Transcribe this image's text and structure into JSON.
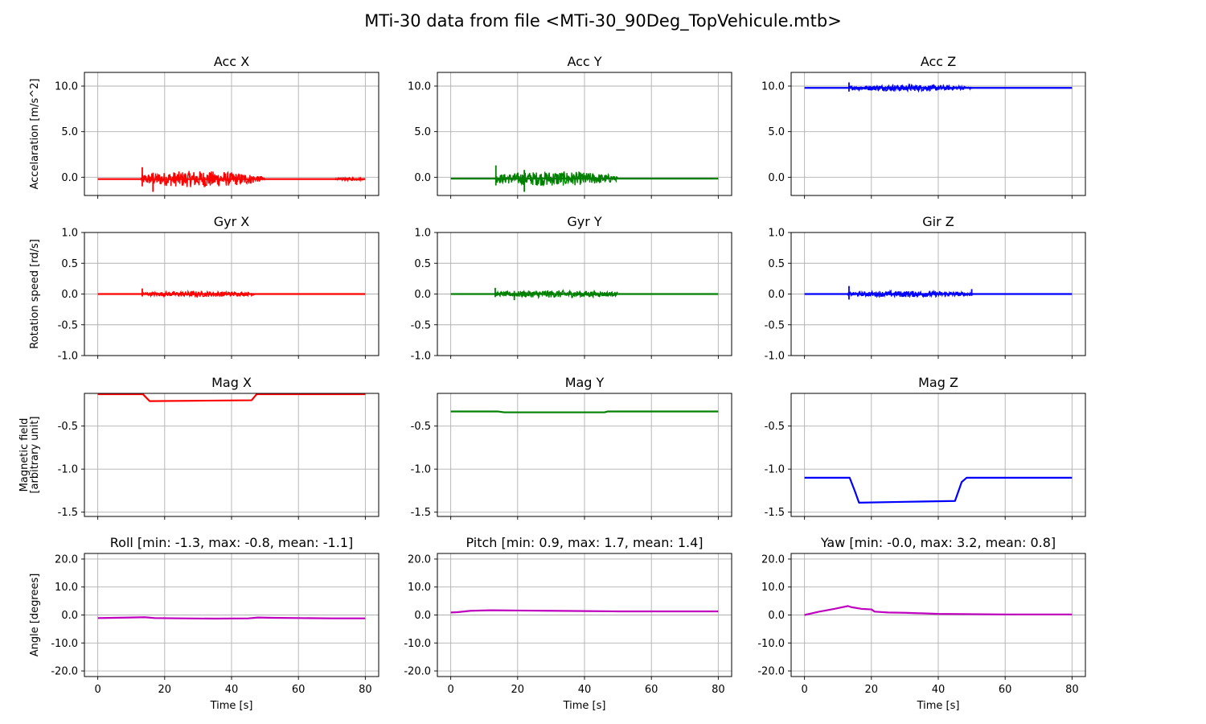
{
  "suptitle": "MTi-30 data from file <MTi-30_90Deg_TopVehicule.mtb>",
  "row_labels": [
    [
      "Accelaration [m/s^2]"
    ],
    [
      "Rotation speed [rd/s]"
    ],
    [
      "Magnetic field",
      "[arbitrary unit]"
    ],
    [
      "Angle [degrees]"
    ]
  ],
  "xlabel": "Time [s]",
  "xlim": [
    -4,
    84
  ],
  "xticks": [
    0,
    20,
    40,
    60,
    80
  ],
  "chart_data": [
    {
      "type": "line",
      "title": "Acc X",
      "color": "#ff0000",
      "ylim": [
        -2.0,
        11.5
      ],
      "yticks": [
        0.0,
        5.0,
        10.0
      ],
      "ytick_labels": [
        "0.0",
        "5.0",
        "10.0"
      ],
      "grid": true,
      "series": [
        {
          "x": [
            0,
            13,
            14,
            45,
            47,
            49,
            80
          ],
          "y": [
            -0.2,
            -0.2,
            -0.2,
            -0.2,
            -0.2,
            -0.2,
            -0.2
          ],
          "noise": [
            {
              "x0": 13,
              "x1": 47,
              "amp": 0.9
            },
            {
              "x0": 47,
              "x1": 50,
              "amp": 0.35
            },
            {
              "x0": 71,
              "x1": 80,
              "amp": 0.15
            }
          ],
          "spikes": [
            {
              "x": 13.3,
              "lo": -1.0,
              "hi": 1.1
            },
            {
              "x": 16.5,
              "lo": -1.6,
              "hi": 0.5
            }
          ]
        }
      ]
    },
    {
      "type": "line",
      "title": "Acc Y",
      "color": "#008000",
      "ylim": [
        -2.0,
        11.5
      ],
      "yticks": [
        0.0,
        5.0,
        10.0
      ],
      "ytick_labels": [
        "0.0",
        "5.0",
        "10.0"
      ],
      "grid": true,
      "series": [
        {
          "x": [
            0,
            13,
            14,
            48,
            50,
            80
          ],
          "y": [
            -0.15,
            -0.15,
            -0.15,
            -0.15,
            -0.15,
            -0.15
          ],
          "noise": [
            {
              "x0": 13.5,
              "x1": 48,
              "amp": 0.8
            },
            {
              "x0": 48,
              "x1": 50,
              "amp": 0.3
            }
          ],
          "spikes": [
            {
              "x": 13.5,
              "lo": -0.9,
              "hi": 1.3
            },
            {
              "x": 22,
              "lo": -1.6,
              "hi": 0.8
            }
          ]
        }
      ]
    },
    {
      "type": "line",
      "title": "Acc Z",
      "color": "#0000ff",
      "ylim": [
        -2.0,
        11.5
      ],
      "yticks": [
        0.0,
        5.0,
        10.0
      ],
      "ytick_labels": [
        "0.0",
        "5.0",
        "10.0"
      ],
      "grid": true,
      "series": [
        {
          "x": [
            0,
            13,
            48,
            50,
            80
          ],
          "y": [
            9.8,
            9.8,
            9.8,
            9.8,
            9.8
          ],
          "noise": [
            {
              "x0": 13.2,
              "x1": 48,
              "amp": 0.35
            },
            {
              "x0": 48,
              "x1": 50,
              "amp": 0.15
            }
          ],
          "spikes": [
            {
              "x": 13.3,
              "lo": 9.4,
              "hi": 10.4
            }
          ]
        }
      ]
    },
    {
      "type": "line",
      "title": "Gyr X",
      "color": "#ff0000",
      "ylim": [
        -1.0,
        1.0
      ],
      "yticks": [
        -1.0,
        -0.5,
        0.0,
        0.5,
        1.0
      ],
      "ytick_labels": [
        "-1.0",
        "-0.5",
        "0.0",
        "0.5",
        "1.0"
      ],
      "grid": true,
      "series": [
        {
          "x": [
            0,
            13,
            48,
            80
          ],
          "y": [
            0.0,
            0.0,
            0.0,
            0.0
          ],
          "noise": [
            {
              "x0": 13.3,
              "x1": 47,
              "amp": 0.045
            }
          ],
          "spikes": [
            {
              "x": 13.3,
              "lo": -0.04,
              "hi": 0.09
            }
          ]
        }
      ]
    },
    {
      "type": "line",
      "title": "Gyr Y",
      "color": "#008000",
      "ylim": [
        -1.0,
        1.0
      ],
      "yticks": [
        -1.0,
        -0.5,
        0.0,
        0.5,
        1.0
      ],
      "ytick_labels": [
        "-1.0",
        "-0.5",
        "0.0",
        "0.5",
        "1.0"
      ],
      "grid": true,
      "series": [
        {
          "x": [
            0,
            13,
            50,
            80
          ],
          "y": [
            0.0,
            0.0,
            0.0,
            0.0
          ],
          "noise": [
            {
              "x0": 13.3,
              "x1": 50,
              "amp": 0.06
            }
          ],
          "spikes": [
            {
              "x": 13.3,
              "lo": -0.05,
              "hi": 0.1
            },
            {
              "x": 19,
              "lo": -0.1,
              "hi": 0.05
            }
          ]
        }
      ]
    },
    {
      "type": "line",
      "title": "Gir Z",
      "color": "#0000ff",
      "ylim": [
        -1.0,
        1.0
      ],
      "yticks": [
        -1.0,
        -0.5,
        0.0,
        0.5,
        1.0
      ],
      "ytick_labels": [
        "-1.0",
        "-0.5",
        "0.0",
        "0.5",
        "1.0"
      ],
      "grid": true,
      "series": [
        {
          "x": [
            0,
            13,
            49,
            80
          ],
          "y": [
            0.0,
            0.0,
            0.0,
            0.0
          ],
          "noise": [
            {
              "x0": 13,
              "x1": 50,
              "amp": 0.05
            }
          ],
          "spikes": [
            {
              "x": 13.3,
              "lo": -0.09,
              "hi": 0.13
            },
            {
              "x": 50,
              "lo": -0.03,
              "hi": 0.08
            }
          ]
        }
      ]
    },
    {
      "type": "line",
      "title": "Mag X",
      "color": "#ff0000",
      "ylim": [
        -1.55,
        -0.12
      ],
      "yticks": [
        -1.5,
        -1.0,
        -0.5
      ],
      "ytick_labels": [
        "-1.5",
        "-1.0",
        "-0.5"
      ],
      "grid": true,
      "series": [
        {
          "x": [
            0,
            13.5,
            15.5,
            46,
            47.5,
            80
          ],
          "y": [
            -0.13,
            -0.13,
            -0.21,
            -0.2,
            -0.13,
            -0.13
          ],
          "noise": [],
          "spikes": []
        }
      ]
    },
    {
      "type": "line",
      "title": "Mag Y",
      "color": "#008000",
      "ylim": [
        -1.55,
        -0.12
      ],
      "yticks": [
        -1.5,
        -1.0,
        -0.5
      ],
      "ytick_labels": [
        "-1.5",
        "-1.0",
        "-0.5"
      ],
      "grid": true,
      "series": [
        {
          "x": [
            0,
            14,
            16,
            46,
            47,
            80
          ],
          "y": [
            -0.33,
            -0.33,
            -0.34,
            -0.34,
            -0.33,
            -0.33
          ],
          "noise": [],
          "spikes": []
        }
      ]
    },
    {
      "type": "line",
      "title": "Mag Z",
      "color": "#0000ff",
      "ylim": [
        -1.55,
        -0.12
      ],
      "yticks": [
        -1.5,
        -1.0,
        -0.5
      ],
      "ytick_labels": [
        "-1.5",
        "-1.0",
        "-0.5"
      ],
      "grid": true,
      "series": [
        {
          "x": [
            0,
            13.5,
            15,
            16.3,
            30,
            45,
            47,
            48.5,
            80
          ],
          "y": [
            -1.1,
            -1.1,
            -1.25,
            -1.39,
            -1.38,
            -1.37,
            -1.15,
            -1.1,
            -1.1
          ],
          "noise": [],
          "spikes": []
        }
      ]
    },
    {
      "type": "line",
      "title": "Roll [min: -1.3, max: -0.8, mean: -1.1]",
      "color": "#bf00bf",
      "ylim": [
        -22,
        22
      ],
      "yticks": [
        -20.0,
        -10.0,
        0.0,
        10.0,
        20.0
      ],
      "ytick_labels": [
        "-20.0",
        "-10.0",
        "0.0",
        "10.0",
        "20.0"
      ],
      "grid": true,
      "series": [
        {
          "x": [
            0,
            10,
            14,
            17,
            25,
            35,
            45,
            48,
            52,
            60,
            70,
            80
          ],
          "y": [
            -1.1,
            -0.9,
            -0.8,
            -1.1,
            -1.2,
            -1.3,
            -1.2,
            -0.9,
            -1.0,
            -1.1,
            -1.2,
            -1.2
          ],
          "noise": [],
          "spikes": []
        }
      ]
    },
    {
      "type": "line",
      "title": "Pitch [min: 0.9, max: 1.7, mean: 1.4]",
      "color": "#bf00bf",
      "ylim": [
        -22,
        22
      ],
      "yticks": [
        -20.0,
        -10.0,
        0.0,
        10.0,
        20.0
      ],
      "ytick_labels": [
        "-20.0",
        "-10.0",
        "0.0",
        "10.0",
        "20.0"
      ],
      "grid": true,
      "series": [
        {
          "x": [
            0,
            2,
            6,
            12,
            20,
            30,
            40,
            50,
            60,
            70,
            80
          ],
          "y": [
            0.9,
            1.0,
            1.5,
            1.7,
            1.6,
            1.5,
            1.4,
            1.3,
            1.3,
            1.3,
            1.3
          ],
          "noise": [],
          "spikes": []
        }
      ]
    },
    {
      "type": "line",
      "title": "Yaw [min: -0.0, max: 3.2, mean: 0.8]",
      "color": "#bf00bf",
      "ylim": [
        -22,
        22
      ],
      "yticks": [
        -20.0,
        -10.0,
        0.0,
        10.0,
        20.0
      ],
      "ytick_labels": [
        "-20.0",
        "-10.0",
        "0.0",
        "10.0",
        "20.0"
      ],
      "grid": true,
      "series": [
        {
          "x": [
            0,
            4,
            9,
            13,
            14,
            17,
            20,
            21,
            25,
            30,
            35,
            40,
            50,
            60,
            70,
            80
          ],
          "y": [
            0.0,
            1.1,
            2.2,
            3.2,
            2.8,
            2.2,
            2.0,
            1.2,
            0.9,
            0.8,
            0.6,
            0.4,
            0.3,
            0.2,
            0.2,
            0.2
          ],
          "noise": [],
          "spikes": []
        }
      ]
    }
  ]
}
